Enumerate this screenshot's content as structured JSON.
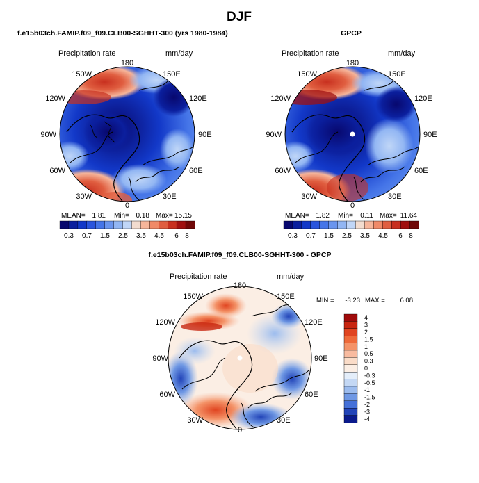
{
  "page_title": "DJF",
  "panels": [
    {
      "id": "model",
      "title": "f.e15b03ch.FAMIP.f09_f09.CLB00-SGHHT-300 (yrs 1980-1984)",
      "variable": "Precipitation rate",
      "units": "mm/day",
      "lon_labels": [
        "180",
        "150E",
        "120E",
        "90E",
        "60E",
        "30E",
        "0",
        "30W",
        "60W",
        "90W",
        "120W",
        "150W"
      ],
      "stats": {
        "mean_label": "MEAN=",
        "mean": "1.81",
        "min_label": "Min=",
        "min": "0.18",
        "max_label": "Max=",
        "max": "15.15"
      },
      "colorbar_labels": [
        "0.3",
        "0.7",
        "1.5",
        "2.5",
        "3.5",
        "4.5",
        "6",
        "8"
      ]
    },
    {
      "id": "obs",
      "title": "GPCP",
      "variable": "Precipitation rate",
      "units": "mm/day",
      "lon_labels": [
        "180",
        "150E",
        "120E",
        "90E",
        "60E",
        "30E",
        "0",
        "30W",
        "60W",
        "90W",
        "120W",
        "150W"
      ],
      "stats": {
        "mean_label": "MEAN=",
        "mean": "1.82",
        "min_label": "Min=",
        "min": "0.11",
        "max_label": "Max=",
        "max": "11.64"
      },
      "colorbar_labels": [
        "0.3",
        "0.7",
        "1.5",
        "2.5",
        "3.5",
        "4.5",
        "6",
        "8"
      ]
    },
    {
      "id": "diff",
      "title": "f.e15b03ch.FAMIP.f09_f09.CLB00-SGHHT-300 - GPCP",
      "variable": "Precipitation rate",
      "units": "mm/day",
      "lon_labels": [
        "180",
        "150E",
        "120E",
        "90E",
        "60E",
        "30E",
        "0",
        "30W",
        "60W",
        "90W",
        "120W",
        "150W"
      ],
      "stats": {
        "min_label": "MIN =",
        "min": "-3.23",
        "max_label": "MAX =",
        "max": "6.08"
      },
      "colorbar_labels": [
        "4",
        "3",
        "2",
        "1.5",
        "1",
        "0.5",
        "0.3",
        "0",
        "-0.3",
        "-0.5",
        "-1",
        "-1.5",
        "-2",
        "-3",
        "-4"
      ]
    }
  ],
  "colors": {
    "precip_scale": [
      "#08086e",
      "#0b1f9e",
      "#1238c8",
      "#2a55dd",
      "#4575e8",
      "#6a95ee",
      "#92b6f3",
      "#c0d6f7",
      "#f2dccf",
      "#f6b59a",
      "#f08a68",
      "#e05e40",
      "#c8301f",
      "#a01010",
      "#700808"
    ],
    "diff_scale": [
      "#a00a0a",
      "#c8250f",
      "#e04420",
      "#ee6a3a",
      "#f49368",
      "#f8bba0",
      "#fadcc8",
      "#fbeee4",
      "#e4eefa",
      "#c4d8f4",
      "#9cbcee",
      "#6f98e4",
      "#4470d8",
      "#2244b8",
      "#0a1a8c"
    ]
  }
}
